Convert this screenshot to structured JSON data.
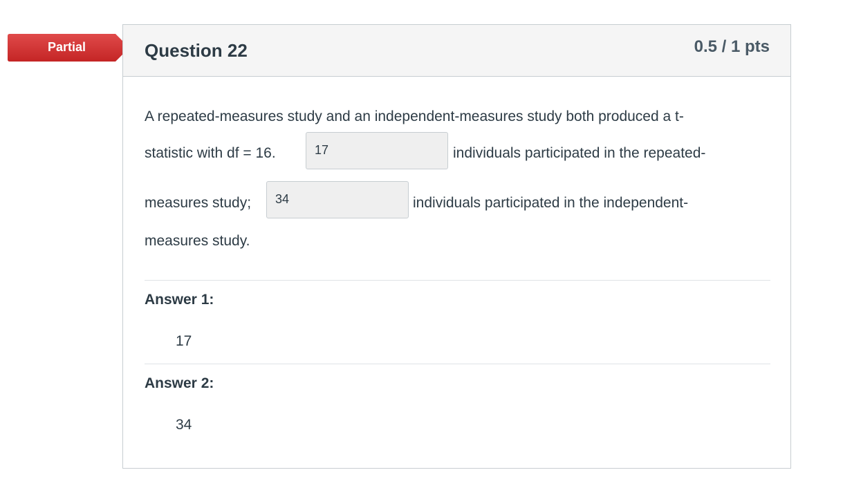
{
  "status_badge": {
    "label": "Partial",
    "color": "#d12e2e"
  },
  "question": {
    "title": "Question 22",
    "points": "0.5 / 1 pts",
    "text": {
      "line1": "A repeated-measures study and an independent-measures study both produced a t-",
      "line2_before": "statistic with df = 16.",
      "line2_after": "individuals participated in the repeated-",
      "line3_before": "measures study;",
      "line3_after": "individuals participated in the independent-",
      "line4": "measures study."
    },
    "blanks": [
      {
        "value": "17"
      },
      {
        "value": "34"
      }
    ]
  },
  "answers": [
    {
      "label": "Answer 1:",
      "value": "17"
    },
    {
      "label": "Answer 2:",
      "value": "34"
    }
  ]
}
